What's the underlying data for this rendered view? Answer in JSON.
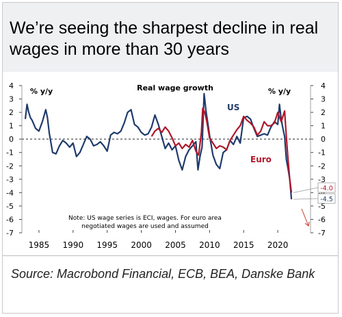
{
  "title": "We’re seeing the sharpest decline in real wages in more than 30 years",
  "source": "Source: Macrobond Financial, ECB, BEA, Danske Bank",
  "chart_data": {
    "type": "line",
    "title": "Real wage growth",
    "ylabel_left": "% y/y",
    "ylabel_right": "% y/y",
    "ylim": [
      -7,
      4
    ],
    "y_ticks": [
      4,
      3,
      2,
      1,
      0,
      -1,
      -2,
      -3,
      -4,
      -5,
      -6,
      -7
    ],
    "y_tick_labels": [
      "4",
      "3",
      "2",
      "1",
      "0",
      "-1",
      "-2",
      "-3",
      "-4",
      "-5",
      "-6",
      "-7"
    ],
    "x_ticks": [
      1985,
      1990,
      1995,
      2000,
      2005,
      2010,
      2015,
      2020
    ],
    "x_tick_labels": [
      "1985",
      "1990",
      "1995",
      "2000",
      "2005",
      "2010",
      "2015",
      "2020"
    ],
    "xlim": [
      1982.5,
      2024.8
    ],
    "zero_line": "dashed",
    "series": [
      {
        "name": "US",
        "color": "#1f3a6b",
        "end_label": "-4.5",
        "x": [
          1983.0,
          1983.25,
          1983.5,
          1983.75,
          1984.0,
          1984.25,
          1984.5,
          1985.0,
          1985.5,
          1986.0,
          1986.25,
          1986.5,
          1987.0,
          1987.5,
          1988.0,
          1988.5,
          1989.0,
          1989.5,
          1990.0,
          1990.5,
          1991.0,
          1991.5,
          1992.0,
          1992.5,
          1993.0,
          1993.5,
          1994.0,
          1994.5,
          1995.0,
          1995.5,
          1996.0,
          1996.5,
          1997.0,
          1997.5,
          1998.0,
          1998.5,
          1999.0,
          1999.5,
          2000.0,
          2000.5,
          2001.0,
          2001.5,
          2002.0,
          2002.5,
          2003.0,
          2003.5,
          2004.0,
          2004.5,
          2005.0,
          2005.5,
          2006.0,
          2006.5,
          2007.0,
          2007.5,
          2008.0,
          2008.3,
          2008.6,
          2008.9,
          2009.2,
          2009.5,
          2009.8,
          2010.0,
          2010.5,
          2011.0,
          2011.5,
          2012.0,
          2012.5,
          2013.0,
          2013.5,
          2014.0,
          2014.5,
          2015.0,
          2015.5,
          2016.0,
          2016.5,
          2017.0,
          2017.5,
          2018.0,
          2018.5,
          2019.0,
          2019.5,
          2020.0,
          2020.25,
          2020.5,
          2020.75,
          2021.0,
          2021.25,
          2021.5,
          2021.75,
          2022.0
        ],
        "y": [
          1.5,
          2.6,
          2.0,
          1.6,
          1.4,
          1.1,
          0.8,
          0.6,
          1.3,
          2.2,
          1.6,
          0.5,
          -1.0,
          -1.1,
          -0.5,
          -0.1,
          -0.3,
          -0.6,
          -0.3,
          -1.3,
          -1.0,
          -0.4,
          0.2,
          0.0,
          -0.5,
          -0.4,
          -0.2,
          -0.5,
          -0.9,
          0.3,
          0.5,
          0.4,
          0.6,
          1.2,
          2.0,
          2.2,
          1.1,
          0.9,
          0.5,
          0.3,
          0.4,
          0.9,
          1.8,
          1.1,
          0.2,
          -0.7,
          -0.3,
          -0.8,
          -0.5,
          -1.6,
          -2.3,
          -1.3,
          -0.8,
          -0.5,
          -0.2,
          -2.3,
          -1.3,
          -0.6,
          3.4,
          2.0,
          1.0,
          0.3,
          -1.2,
          -1.9,
          -2.2,
          -1.0,
          -0.8,
          -0.1,
          -0.4,
          0.2,
          -0.3,
          1.6,
          1.7,
          1.5,
          0.8,
          0.2,
          0.3,
          0.4,
          0.3,
          0.9,
          1.3,
          1.1,
          2.6,
          1.5,
          0.8,
          0.2,
          -1.5,
          -2.2,
          -3.0,
          -4.5
        ]
      },
      {
        "name": "Euro",
        "color": "#b0172a",
        "end_label": "-4.0",
        "x": [
          2001.5,
          2002.0,
          2002.5,
          2003.0,
          2003.5,
          2004.0,
          2004.5,
          2005.0,
          2005.5,
          2006.0,
          2006.5,
          2007.0,
          2007.5,
          2008.0,
          2008.4,
          2008.8,
          2009.0,
          2009.3,
          2009.6,
          2010.0,
          2010.5,
          2011.0,
          2011.5,
          2012.0,
          2012.5,
          2013.0,
          2013.5,
          2014.0,
          2014.5,
          2015.0,
          2015.5,
          2016.0,
          2016.5,
          2017.0,
          2017.5,
          2018.0,
          2018.5,
          2019.0,
          2019.5,
          2020.0,
          2020.5,
          2021.0,
          2021.25,
          2021.5,
          2021.75,
          2022.0
        ],
        "y": [
          0.2,
          0.6,
          0.8,
          0.5,
          0.9,
          0.6,
          0.1,
          -0.5,
          -0.3,
          -0.7,
          -0.4,
          -0.6,
          -0.1,
          -0.9,
          -1.2,
          0.5,
          2.3,
          2.0,
          1.3,
          0.1,
          -0.3,
          -0.7,
          -0.5,
          -0.6,
          -0.8,
          -0.1,
          0.3,
          0.7,
          1.0,
          1.7,
          1.4,
          1.2,
          0.9,
          0.3,
          0.6,
          1.3,
          1.0,
          1.0,
          1.2,
          2.0,
          1.3,
          2.1,
          0.2,
          -1.5,
          -3.0,
          -4.0
        ]
      }
    ],
    "annotations": [
      "Note: US wage series is ECI, wages. For euro area negotiated wages are used and assumed"
    ]
  }
}
